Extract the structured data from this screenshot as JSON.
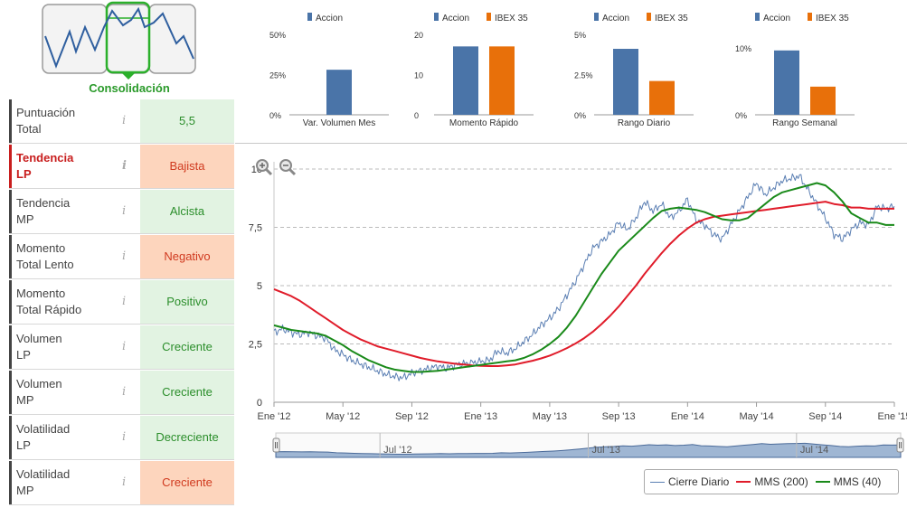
{
  "phase": {
    "label": "Consolidación",
    "colors": {
      "active": "#2bb02b",
      "inactive": "#999999",
      "line": "#2f5f9f"
    }
  },
  "indicators": [
    {
      "name_lines": [
        "Puntuación",
        "Total"
      ],
      "value": "5,5",
      "status": "pos",
      "highlight": false
    },
    {
      "name_lines": [
        "Tendencia",
        "LP"
      ],
      "value": "Bajista",
      "status": "neg",
      "highlight": true
    },
    {
      "name_lines": [
        "Tendencia",
        "MP"
      ],
      "value": "Alcista",
      "status": "pos",
      "highlight": false
    },
    {
      "name_lines": [
        "Momento",
        "Total Lento"
      ],
      "value": "Negativo",
      "status": "neg",
      "highlight": false
    },
    {
      "name_lines": [
        "Momento",
        "Total Rápido"
      ],
      "value": "Positivo",
      "status": "pos",
      "highlight": false
    },
    {
      "name_lines": [
        "Volumen",
        "LP"
      ],
      "value": "Creciente",
      "status": "pos",
      "highlight": false
    },
    {
      "name_lines": [
        "Volumen",
        "MP"
      ],
      "value": "Creciente",
      "status": "pos",
      "highlight": false
    },
    {
      "name_lines": [
        "Volatilidad",
        "LP"
      ],
      "value": "Decreciente",
      "status": "pos",
      "highlight": false
    },
    {
      "name_lines": [
        "Volatilidad",
        "MP"
      ],
      "value": "Creciente",
      "status": "neg",
      "highlight": false
    }
  ],
  "info_glyph": "i",
  "colors": {
    "accion": "#4a74a8",
    "ibex": "#e8700a",
    "close": "#5b7fb3",
    "mms200": "#e01c2a",
    "mms40": "#1a8a1a",
    "navigator_fill": "#9fb6d3"
  },
  "chart_data": [
    {
      "type": "bar",
      "title": "Var. Volumen Mes",
      "ytick_labels": [
        "0%",
        "25%",
        "50%"
      ],
      "ylim": [
        0,
        50
      ],
      "series": [
        {
          "name": "Accion",
          "values": [
            28
          ]
        }
      ]
    },
    {
      "type": "bar",
      "title": "Momento Rápido",
      "ytick_labels": [
        "0",
        "10",
        "20"
      ],
      "ylim": [
        0,
        20
      ],
      "series": [
        {
          "name": "Accion",
          "values": [
            17
          ]
        },
        {
          "name": "IBEX 35",
          "values": [
            17
          ]
        }
      ]
    },
    {
      "type": "bar",
      "title": "Rango Diario",
      "ytick_labels": [
        "0%",
        "2.5%",
        "5%"
      ],
      "ylim": [
        0,
        5
      ],
      "series": [
        {
          "name": "Accion",
          "values": [
            4.1
          ]
        },
        {
          "name": "IBEX 35",
          "values": [
            2.1
          ]
        }
      ]
    },
    {
      "type": "bar",
      "title": "Rango Semanal",
      "ytick_labels": [
        "0%",
        "10%"
      ],
      "ylim": [
        0,
        12
      ],
      "series": [
        {
          "name": "Accion",
          "values": [
            9.6
          ]
        },
        {
          "name": "IBEX 35",
          "values": [
            4.2
          ]
        }
      ]
    },
    {
      "type": "line",
      "x_tick_labels": [
        "Ene '12",
        "May '12",
        "Sep '12",
        "Ene '13",
        "May '13",
        "Sep '13",
        "Ene '14",
        "May '14",
        "Sep '14",
        "Ene '15"
      ],
      "y_tick_labels": [
        "0",
        "2,5",
        "5",
        "7,5",
        "10"
      ],
      "ylim": [
        0,
        10
      ],
      "grid": true,
      "legend_position": "bottom-right",
      "navigator_labels": [
        "Jul '12",
        "Jul '13",
        "Jul '14"
      ],
      "x": [
        0,
        0.5,
        1,
        1.5,
        2,
        2.5,
        3,
        3.5,
        4,
        4.5,
        5,
        5.5,
        6,
        6.5,
        7,
        7.5,
        8,
        8.5,
        9,
        9.5,
        10,
        10.5,
        11,
        11.5,
        12,
        12.5,
        13,
        13.5,
        14,
        14.5,
        15,
        15.5,
        16,
        16.5,
        17,
        17.5,
        18,
        18.5,
        19,
        19.5,
        20,
        20.5,
        21,
        21.5,
        22,
        22.5,
        23,
        23.5,
        24,
        24.5,
        25,
        25.5,
        26,
        26.5,
        27,
        27.5,
        28,
        28.5,
        29,
        29.5,
        30,
        30.5,
        31,
        31.5,
        32,
        32.5,
        33,
        33.5,
        34,
        34.5,
        35,
        35.5,
        36
      ],
      "series": [
        {
          "name": "Cierre Diario",
          "values": [
            3.0,
            3.15,
            3.0,
            2.9,
            3.0,
            2.85,
            2.75,
            2.25,
            2.05,
            1.8,
            1.65,
            1.5,
            1.35,
            1.2,
            1.1,
            1.05,
            1.25,
            1.35,
            1.45,
            1.55,
            1.45,
            1.6,
            1.65,
            1.7,
            1.75,
            1.8,
            2.2,
            2.1,
            2.3,
            2.6,
            2.9,
            3.3,
            3.6,
            4.0,
            4.6,
            5.2,
            5.9,
            6.6,
            6.9,
            7.2,
            7.7,
            7.4,
            7.9,
            8.6,
            8.2,
            8.5,
            7.9,
            8.2,
            8.7,
            7.8,
            7.6,
            7.2,
            7.0,
            7.6,
            8.2,
            8.8,
            9.4,
            8.9,
            9.2,
            9.5,
            9.6,
            9.7,
            9.1,
            8.5,
            7.9,
            7.2,
            7.0,
            7.4,
            7.7,
            7.6,
            8.4,
            8.3,
            8.4
          ]
        },
        {
          "name": "MMS (200)",
          "values": [
            4.85,
            4.7,
            4.55,
            4.35,
            4.1,
            3.85,
            3.6,
            3.35,
            3.1,
            2.9,
            2.7,
            2.55,
            2.4,
            2.3,
            2.2,
            2.1,
            2.0,
            1.9,
            1.82,
            1.75,
            1.7,
            1.65,
            1.62,
            1.58,
            1.56,
            1.55,
            1.55,
            1.58,
            1.62,
            1.7,
            1.78,
            1.88,
            2.0,
            2.15,
            2.32,
            2.52,
            2.75,
            3.02,
            3.35,
            3.7,
            4.1,
            4.55,
            5.0,
            5.5,
            5.95,
            6.4,
            6.8,
            7.15,
            7.45,
            7.7,
            7.85,
            7.95,
            8.0,
            8.05,
            8.1,
            8.15,
            8.2,
            8.25,
            8.3,
            8.35,
            8.4,
            8.45,
            8.5,
            8.55,
            8.6,
            8.5,
            8.45,
            8.35,
            8.35,
            8.3,
            8.3,
            8.3,
            8.3
          ]
        },
        {
          "name": "MMS (40)",
          "values": [
            3.3,
            3.2,
            3.1,
            3.05,
            3.0,
            2.95,
            2.85,
            2.65,
            2.45,
            2.2,
            2.0,
            1.8,
            1.65,
            1.5,
            1.4,
            1.35,
            1.3,
            1.3,
            1.32,
            1.35,
            1.4,
            1.45,
            1.5,
            1.55,
            1.6,
            1.65,
            1.7,
            1.75,
            1.8,
            1.9,
            2.05,
            2.25,
            2.5,
            2.8,
            3.2,
            3.7,
            4.3,
            4.9,
            5.5,
            6.0,
            6.5,
            6.85,
            7.2,
            7.55,
            7.9,
            8.2,
            8.3,
            8.35,
            8.3,
            8.25,
            8.15,
            8.0,
            7.85,
            7.8,
            7.8,
            7.9,
            8.2,
            8.5,
            8.8,
            9.0,
            9.1,
            9.2,
            9.3,
            9.4,
            9.3,
            9.0,
            8.6,
            8.1,
            7.9,
            7.7,
            7.7,
            7.6,
            7.6
          ]
        }
      ]
    }
  ],
  "legend": [
    {
      "name": "Cierre Diario"
    },
    {
      "name": "MMS (200)"
    },
    {
      "name": "MMS (40)"
    }
  ]
}
